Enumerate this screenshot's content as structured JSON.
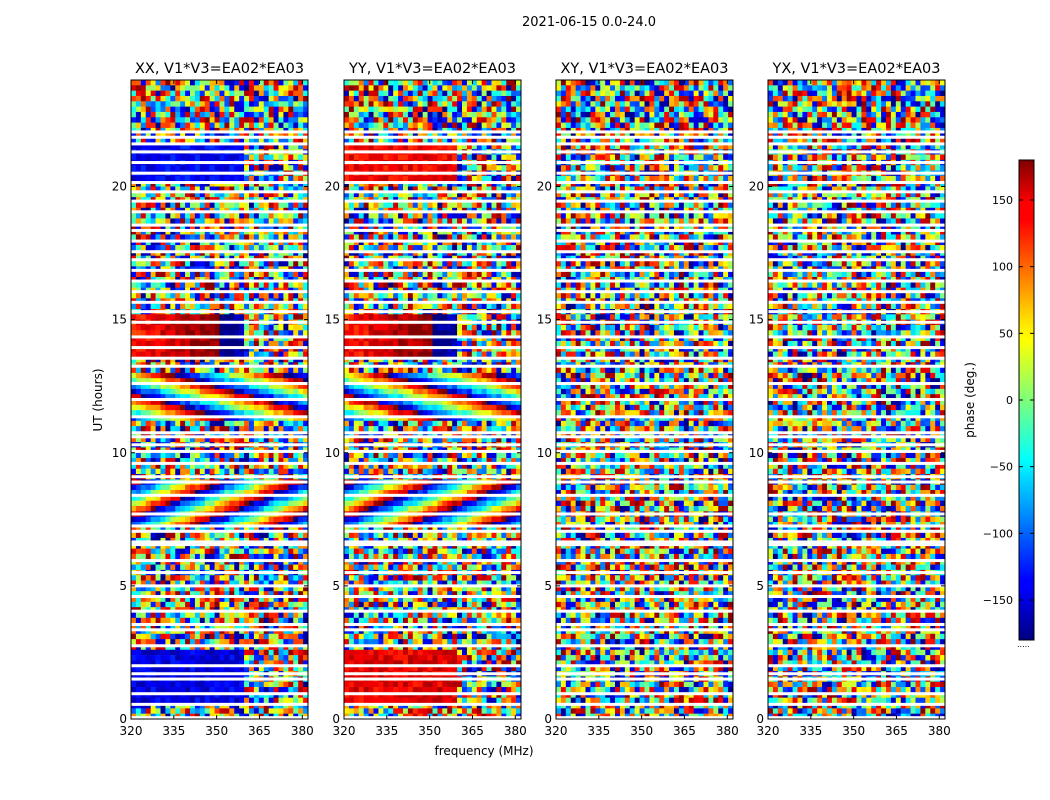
{
  "figure": {
    "suptitle": "2021-06-15 0.0-24.0",
    "xlabel": "frequency (MHz)",
    "ylabel": "UT (hours)"
  },
  "chart_data": {
    "type": "heatmap",
    "title": "2021-06-15 0.0-24.0",
    "xlabel": "frequency (MHz)",
    "ylabel": "UT (hours)",
    "xlim": [
      320,
      382
    ],
    "ylim": [
      0,
      24
    ],
    "xticks": [
      "320",
      "335",
      "350",
      "365",
      "380"
    ],
    "yticks": [
      "0",
      "5",
      "10",
      "15",
      "20"
    ],
    "panels": [
      {
        "title": "XX, V1*V3=EA02*EA03",
        "polarization": "XX"
      },
      {
        "title": "YY, V1*V3=EA02*EA03",
        "polarization": "YY"
      },
      {
        "title": "XY, V1*V3=EA02*EA03",
        "polarization": "XY"
      },
      {
        "title": "YX, V1*V3=EA02*EA03",
        "polarization": "YX"
      }
    ],
    "colorbar": {
      "label": "phase (deg.)",
      "range": [
        -180,
        180
      ],
      "ticks": [
        "150",
        "100",
        "50",
        "0",
        "−50",
        "−100",
        "−150"
      ],
      "colormap": "jet"
    },
    "flagged_rows_ut": [
      0.05,
      0.55,
      0.95,
      1.5,
      1.7,
      2.0,
      2.75,
      3.35,
      3.55,
      4.05,
      4.6,
      5.0,
      5.5,
      5.95,
      6.55,
      6.65,
      7.05,
      7.25,
      7.7,
      8.4,
      8.9,
      9.1,
      9.6,
      10.05,
      10.3,
      10.6,
      10.75,
      11.35,
      12.0,
      12.6,
      13.25,
      13.55,
      13.95,
      14.35,
      14.9,
      15.3,
      15.65,
      16.05,
      16.45,
      16.85,
      17.25,
      17.55,
      17.95,
      18.35,
      18.55,
      19.05,
      19.45,
      19.8,
      20.15,
      20.5,
      20.9,
      21.3,
      21.6,
      21.85,
      22.05
    ]
  }
}
